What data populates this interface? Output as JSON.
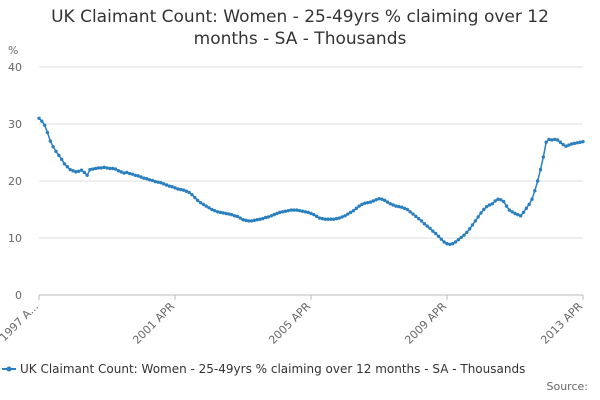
{
  "chart_data": {
    "type": "line",
    "title": "UK Claimant Count: Women - 25-49yrs % claiming over 12 months - SA - Thousands",
    "y_label": "%",
    "source": "Source:",
    "categories": [
      "1997 A...",
      null,
      null,
      null,
      null,
      null,
      null,
      null,
      null,
      null,
      null,
      null,
      null,
      null,
      null,
      null,
      null,
      null,
      null,
      null,
      null,
      null,
      null,
      null,
      null,
      null,
      null,
      null,
      null,
      null,
      null,
      null,
      null,
      null,
      null,
      null,
      null,
      null,
      null,
      null,
      null,
      null,
      null,
      null,
      null,
      null,
      null,
      null,
      "2001 APR",
      null,
      null,
      null,
      null,
      null,
      null,
      null,
      null,
      null,
      null,
      null,
      null,
      null,
      null,
      null,
      null,
      null,
      null,
      null,
      null,
      null,
      null,
      null,
      null,
      null,
      null,
      null,
      null,
      null,
      null,
      null,
      null,
      null,
      null,
      null,
      null,
      null,
      null,
      null,
      null,
      null,
      null,
      null,
      null,
      null,
      null,
      null,
      "2005 APR",
      null,
      null,
      null,
      null,
      null,
      null,
      null,
      null,
      null,
      null,
      null,
      null,
      null,
      null,
      null,
      null,
      null,
      null,
      null,
      null,
      null,
      null,
      null,
      null,
      null,
      null,
      null,
      null,
      null,
      null,
      null,
      null,
      null,
      null,
      null,
      null,
      null,
      null,
      null,
      null,
      null,
      null,
      null,
      null,
      null,
      null,
      null,
      "2009 APR",
      null,
      null,
      null,
      null,
      null,
      null,
      null,
      null,
      null,
      null,
      null,
      null,
      null,
      null,
      null,
      null,
      null,
      null,
      null,
      null,
      null,
      null,
      null,
      null,
      null,
      null,
      null,
      null,
      null,
      null,
      null,
      null,
      null,
      null,
      null,
      null,
      null,
      null,
      null,
      null,
      null,
      null,
      null,
      null,
      null,
      null,
      null,
      "2013 APR"
    ],
    "series": [
      {
        "name": "UK Claimant Count: Women - 25-49yrs % claiming over 12 months - SA - Thousands",
        "color": "#2a7fbf",
        "values": [
          31,
          30.5,
          29.8,
          28.5,
          27,
          26,
          25.2,
          24.5,
          23.8,
          23,
          22.5,
          22,
          21.8,
          21.6,
          21.7,
          21.9,
          21.5,
          21,
          22,
          22.1,
          22.2,
          22.3,
          22.3,
          22.4,
          22.3,
          22.2,
          22.2,
          22.1,
          21.8,
          21.6,
          21.4,
          21.5,
          21.3,
          21.2,
          21,
          20.9,
          20.7,
          20.5,
          20.4,
          20.2,
          20.1,
          19.9,
          19.8,
          19.7,
          19.5,
          19.3,
          19.1,
          19,
          18.8,
          18.6,
          18.5,
          18.4,
          18.2,
          18,
          17.6,
          17.1,
          16.6,
          16.2,
          15.9,
          15.6,
          15.3,
          15,
          14.8,
          14.6,
          14.5,
          14.4,
          14.3,
          14.2,
          14.1,
          13.9,
          13.8,
          13.5,
          13.2,
          13.1,
          13,
          13,
          13.1,
          13.2,
          13.3,
          13.4,
          13.6,
          13.7,
          13.9,
          14.1,
          14.3,
          14.5,
          14.6,
          14.7,
          14.8,
          14.9,
          14.9,
          14.9,
          14.8,
          14.7,
          14.6,
          14.5,
          14.3,
          14.1,
          13.8,
          13.5,
          13.4,
          13.3,
          13.3,
          13.3,
          13.3,
          13.4,
          13.5,
          13.7,
          13.9,
          14.2,
          14.5,
          14.8,
          15.2,
          15.6,
          15.9,
          16.1,
          16.2,
          16.3,
          16.5,
          16.7,
          16.9,
          16.8,
          16.6,
          16.3,
          16,
          15.8,
          15.6,
          15.5,
          15.4,
          15.2,
          15,
          14.6,
          14.2,
          13.8,
          13.4,
          13,
          12.5,
          12.1,
          11.7,
          11.2,
          10.8,
          10.3,
          9.8,
          9.3,
          9,
          8.9,
          9,
          9.3,
          9.7,
          10.1,
          10.5,
          11,
          11.6,
          12.3,
          13,
          13.7,
          14.4,
          15,
          15.5,
          15.8,
          16,
          16.5,
          16.8,
          16.7,
          16.4,
          15.6,
          14.9,
          14.6,
          14.3,
          14.1,
          13.9,
          14.5,
          15.2,
          15.9,
          16.8,
          18.3,
          20,
          22,
          24.2,
          26.8,
          27.3,
          27.2,
          27.3,
          27.2,
          26.8,
          26.4,
          26.1,
          26.3,
          26.5,
          26.6,
          26.7,
          26.8,
          26.9
        ]
      }
    ],
    "ylim": [
      0,
      40
    ],
    "yticks": [
      0,
      10,
      20,
      30,
      40
    ],
    "grid": true
  }
}
